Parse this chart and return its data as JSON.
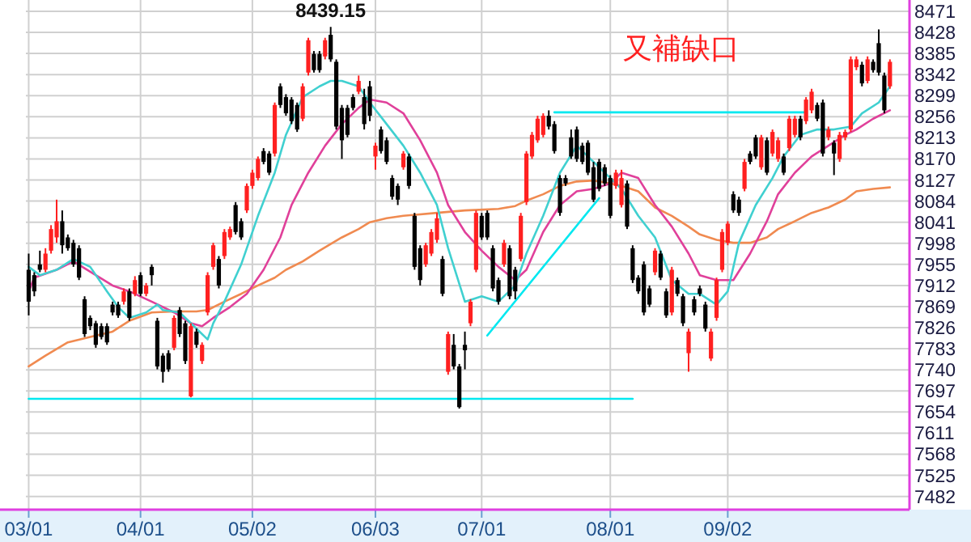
{
  "chart_data": {
    "type": "candlestick",
    "grid": true,
    "categories": [
      "03/01",
      null,
      null,
      null,
      null,
      null,
      null,
      null,
      null,
      null,
      null,
      null,
      null,
      null,
      null,
      null,
      null,
      null,
      null,
      null,
      "04/01",
      null,
      null,
      null,
      null,
      null,
      null,
      null,
      null,
      null,
      null,
      null,
      null,
      null,
      null,
      null,
      null,
      null,
      null,
      null,
      "05/02",
      null,
      null,
      null,
      null,
      null,
      null,
      null,
      null,
      null,
      null,
      null,
      null,
      null,
      null,
      null,
      null,
      null,
      null,
      null,
      null,
      null,
      "06/03",
      null,
      null,
      null,
      null,
      null,
      null,
      null,
      null,
      null,
      null,
      null,
      null,
      null,
      null,
      null,
      null,
      null,
      null,
      "07/01",
      null,
      null,
      null,
      null,
      null,
      null,
      null,
      null,
      null,
      null,
      null,
      null,
      null,
      null,
      null,
      null,
      null,
      null,
      null,
      null,
      null,
      null,
      "08/01",
      null,
      null,
      null,
      null,
      null,
      null,
      null,
      null,
      null,
      null,
      null,
      null,
      null,
      null,
      null,
      null,
      null,
      null,
      null,
      null,
      "09/02",
      null,
      null,
      null,
      null,
      null,
      null,
      null,
      null,
      null,
      null,
      null,
      null,
      null,
      null,
      null,
      null,
      null,
      null,
      null,
      null,
      null,
      null,
      null,
      null,
      null,
      null,
      null,
      null,
      null
    ],
    "ylim": [
      7455,
      8494
    ],
    "yticks": [
      7482,
      7525,
      7568,
      7611,
      7654,
      7697,
      7740,
      7783,
      7826,
      7869,
      7912,
      7955,
      7998,
      8041,
      8084,
      8127,
      8170,
      8213,
      8256,
      8299,
      8342,
      8385,
      8428,
      8471
    ],
    "annotations": [
      {
        "text": "8439.15",
        "y": 8439.15
      },
      "又補缺口"
    ],
    "ohlc": [
      [
        7944,
        7977,
        7851,
        7879
      ],
      [
        7933,
        7939,
        7890,
        7900
      ],
      [
        7955,
        7983,
        7939,
        7944
      ],
      [
        7944,
        7988,
        7939,
        7977
      ],
      [
        7983,
        8035,
        7977,
        8027
      ],
      [
        8010,
        8087,
        7999,
        8043
      ],
      [
        8043,
        8065,
        7977,
        7994
      ],
      [
        8010,
        8016,
        7983,
        7988
      ],
      [
        7999,
        8005,
        7950,
        7955
      ],
      [
        7988,
        7994,
        7923,
        7928
      ],
      [
        7884,
        7890,
        7807,
        7813
      ],
      [
        7846,
        7851,
        7821,
        7829
      ],
      [
        7835,
        7840,
        7785,
        7791
      ],
      [
        7829,
        7835,
        7802,
        7807
      ],
      [
        7829,
        7835,
        7791,
        7796
      ],
      [
        7873,
        7879,
        7851,
        7857
      ],
      [
        7873,
        7879,
        7846,
        7851
      ],
      [
        7879,
        7906,
        7873,
        7900
      ],
      [
        7900,
        7906,
        7840,
        7846
      ],
      [
        7895,
        7931,
        7890,
        7923
      ],
      [
        7933,
        7939,
        7890,
        7895
      ],
      [
        7895,
        7917,
        7890,
        7912
      ],
      [
        7950,
        7955,
        7912,
        7933
      ],
      [
        7840,
        7846,
        7741,
        7747
      ],
      [
        7769,
        7774,
        7714,
        7736
      ],
      [
        7774,
        7780,
        7736,
        7741
      ],
      [
        7785,
        7851,
        7780,
        7846
      ],
      [
        7862,
        7868,
        7807,
        7813
      ],
      [
        7835,
        7840,
        7752,
        7758
      ],
      [
        7686,
        7835,
        7684,
        7829
      ],
      [
        7818,
        7824,
        7785,
        7791
      ],
      [
        7758,
        7796,
        7752,
        7791
      ],
      [
        7857,
        7939,
        7851,
        7933
      ],
      [
        7950,
        7999,
        7944,
        7994
      ],
      [
        7966,
        7972,
        7906,
        7912
      ],
      [
        7972,
        8027,
        7966,
        8021
      ],
      [
        8010,
        8032,
        8005,
        8027
      ],
      [
        8076,
        8082,
        8016,
        8021
      ],
      [
        8043,
        8049,
        8005,
        8010
      ],
      [
        8065,
        8120,
        8060,
        8115
      ],
      [
        8115,
        8148,
        8109,
        8142
      ],
      [
        8131,
        8175,
        8126,
        8170
      ],
      [
        8186,
        8192,
        8159,
        8164
      ],
      [
        8181,
        8186,
        8137,
        8142
      ],
      [
        8181,
        8285,
        8175,
        8280
      ],
      [
        8318,
        8324,
        8274,
        8280
      ],
      [
        8296,
        8302,
        8258,
        8263
      ],
      [
        8291,
        8296,
        8241,
        8247
      ],
      [
        8280,
        8285,
        8225,
        8230
      ],
      [
        8252,
        8324,
        8247,
        8318
      ],
      [
        8346,
        8417,
        8340,
        8412
      ],
      [
        8384,
        8390,
        8346,
        8351
      ],
      [
        8384,
        8390,
        8346,
        8351
      ],
      [
        8379,
        8417,
        8373,
        8412
      ],
      [
        8423,
        8439.15,
        8368,
        8373
      ],
      [
        8368,
        8373,
        8230,
        8236
      ],
      [
        8274,
        8280,
        8170,
        8208
      ],
      [
        8274,
        8280,
        8214,
        8219
      ],
      [
        8296,
        8302,
        8269,
        8274
      ],
      [
        8307,
        8340,
        8302,
        8329
      ],
      [
        8296,
        8313,
        8230,
        8241
      ],
      [
        8318,
        8329,
        8247,
        8258
      ],
      [
        8175,
        8203,
        8148,
        8197
      ],
      [
        8230,
        8236,
        8181,
        8186
      ],
      [
        8208,
        8214,
        8159,
        8164
      ],
      [
        8131,
        8137,
        8087,
        8093
      ],
      [
        8115,
        8120,
        8076,
        8087
      ],
      [
        8153,
        8186,
        8148,
        8181
      ],
      [
        8175,
        8181,
        8109,
        8115
      ],
      [
        8054,
        8060,
        7944,
        7950
      ],
      [
        7988,
        7994,
        7912,
        7923
      ],
      [
        7955,
        7999,
        7950,
        7994
      ],
      [
        7977,
        8027,
        7972,
        8021
      ],
      [
        8005,
        8060,
        7999,
        8049
      ],
      [
        7966,
        7972,
        7890,
        7895
      ],
      [
        7736,
        7818,
        7730,
        7813
      ],
      [
        7791,
        7813,
        7741,
        7747
      ],
      [
        7747,
        7752,
        7661,
        7664
      ],
      [
        7791,
        7818,
        7741,
        7780
      ],
      [
        7835,
        7884,
        7829,
        7879
      ],
      [
        7944,
        8065,
        7939,
        8060
      ],
      [
        8054,
        8060,
        8005,
        8010
      ],
      [
        8060,
        8065,
        8005,
        8010
      ],
      [
        7988,
        7994,
        7900,
        7906
      ],
      [
        7923,
        7928,
        7873,
        7879
      ],
      [
        7955,
        8005,
        7950,
        7999
      ],
      [
        7988,
        7994,
        7884,
        7890
      ],
      [
        7944,
        7950,
        7884,
        7900
      ],
      [
        7966,
        8060,
        7961,
        8054
      ],
      [
        8082,
        8186,
        8076,
        8181
      ],
      [
        8175,
        8225,
        8170,
        8219
      ],
      [
        8208,
        8258,
        8203,
        8252
      ],
      [
        8219,
        8263,
        8214,
        8258
      ],
      [
        8258,
        8269,
        8230,
        8236
      ],
      [
        8241,
        8247,
        8181,
        8186
      ],
      [
        8131,
        8137,
        8054,
        8060
      ],
      [
        8131,
        8137,
        8115,
        8120
      ],
      [
        8214,
        8230,
        8170,
        8175
      ],
      [
        8230,
        8236,
        8164,
        8170
      ],
      [
        8197,
        8203,
        8159,
        8164
      ],
      [
        8203,
        8208,
        8137,
        8142
      ],
      [
        8153,
        8164,
        8082,
        8087
      ],
      [
        8164,
        8170,
        8104,
        8109
      ],
      [
        8153,
        8159,
        8115,
        8120
      ],
      [
        8131,
        8137,
        8049,
        8054
      ],
      [
        8115,
        8148,
        8109,
        8142
      ],
      [
        8076,
        8148,
        8071,
        8131
      ],
      [
        8120,
        8126,
        8027,
        8032
      ],
      [
        7988,
        7994,
        7917,
        7923
      ],
      [
        7928,
        7933,
        7895,
        7900
      ],
      [
        7955,
        7961,
        7851,
        7857
      ],
      [
        7906,
        7912,
        7868,
        7873
      ],
      [
        7939,
        7988,
        7933,
        7983
      ],
      [
        7977,
        7983,
        7923,
        7928
      ],
      [
        7900,
        7906,
        7846,
        7851
      ],
      [
        7857,
        7950,
        7851,
        7944
      ],
      [
        7923,
        7928,
        7890,
        7895
      ],
      [
        7890,
        7895,
        7829,
        7835
      ],
      [
        7774,
        7824,
        7736,
        7818
      ],
      [
        7884,
        7890,
        7851,
        7857
      ],
      [
        7906,
        7912,
        7890,
        7895
      ],
      [
        7873,
        7879,
        7818,
        7824
      ],
      [
        7763,
        7824,
        7758,
        7818
      ],
      [
        7846,
        7928,
        7840,
        7923
      ],
      [
        7944,
        8027,
        7939,
        8021
      ],
      [
        7999,
        8043,
        7994,
        8038
      ],
      [
        8098,
        8104,
        8060,
        8065
      ],
      [
        8087,
        8093,
        8054,
        8060
      ],
      [
        8109,
        8170,
        8104,
        8164
      ],
      [
        8181,
        8186,
        8159,
        8164
      ],
      [
        8214,
        8219,
        8170,
        8175
      ],
      [
        8153,
        8219,
        8148,
        8214
      ],
      [
        8208,
        8214,
        8137,
        8142
      ],
      [
        8181,
        8230,
        8175,
        8225
      ],
      [
        8170,
        8214,
        8164,
        8208
      ],
      [
        8175,
        8181,
        8137,
        8142
      ],
      [
        8192,
        8258,
        8186,
        8252
      ],
      [
        8219,
        8258,
        8214,
        8252
      ],
      [
        8252,
        8258,
        8208,
        8214
      ],
      [
        8247,
        8296,
        8241,
        8291
      ],
      [
        8269,
        8313,
        8263,
        8307
      ],
      [
        8280,
        8285,
        8247,
        8252
      ],
      [
        8285,
        8291,
        8175,
        8181
      ],
      [
        8214,
        8236,
        8208,
        8230
      ],
      [
        8203,
        8208,
        8137,
        8181
      ],
      [
        8170,
        8225,
        8164,
        8219
      ],
      [
        8214,
        8230,
        8208,
        8225
      ],
      [
        8230,
        8379,
        8225,
        8373
      ],
      [
        8357,
        8379,
        8351,
        8373
      ],
      [
        8362,
        8368,
        8318,
        8324
      ],
      [
        8329,
        8379,
        8324,
        8373
      ],
      [
        8368,
        8373,
        8346,
        8351
      ],
      [
        8406,
        8434,
        8340,
        8346
      ],
      [
        8340,
        8346,
        8263,
        8269
      ],
      [
        8318,
        8373,
        8313,
        8368
      ]
    ],
    "colors": [
      "#000000",
      "#000000",
      "#000000",
      "#ff2020",
      "#ff2020",
      "#ff2020",
      "#000000",
      "#000000",
      "#000000",
      "#000000",
      "#000000",
      "#000000",
      "#000000",
      "#000000",
      "#000000",
      "#000000",
      "#000000",
      "#ff2020",
      "#000000",
      "#ff2020",
      "#000000",
      "#ff2020",
      "#000000",
      "#000000",
      "#000000",
      "#000000",
      "#ff2020",
      "#000000",
      "#000000",
      "#ff2020",
      "#000000",
      "#ff2020",
      "#ff2020",
      "#ff2020",
      "#000000",
      "#ff2020",
      "#ff2020",
      "#000000",
      "#000000",
      "#ff2020",
      "#ff2020",
      "#ff2020",
      "#000000",
      "#000000",
      "#ff2020",
      "#000000",
      "#000000",
      "#000000",
      "#000000",
      "#ff2020",
      "#ff2020",
      "#000000",
      "#000000",
      "#ff2020",
      "#000000",
      "#000000",
      "#000000",
      "#000000",
      "#000000",
      "#ff2020",
      "#000000",
      "#000000",
      "#ff2020",
      "#000000",
      "#000000",
      "#000000",
      "#000000",
      "#ff2020",
      "#000000",
      "#000000",
      "#000000",
      "#ff2020",
      "#ff2020",
      "#ff2020",
      "#000000",
      "#ff2020",
      "#000000",
      "#000000",
      "#000000",
      "#ff2020",
      "#ff2020",
      "#000000",
      "#000000",
      "#000000",
      "#000000",
      "#ff2020",
      "#000000",
      "#000000",
      "#ff2020",
      "#ff2020",
      "#ff2020",
      "#ff2020",
      "#ff2020",
      "#000000",
      "#000000",
      "#000000",
      "#000000",
      "#000000",
      "#000000",
      "#000000",
      "#000000",
      "#000000",
      "#000000",
      "#000000",
      "#000000",
      "#ff2020",
      "#ff2020",
      "#000000",
      "#000000",
      "#000000",
      "#000000",
      "#000000",
      "#ff2020",
      "#000000",
      "#000000",
      "#ff2020",
      "#000000",
      "#000000",
      "#ff2020",
      "#000000",
      "#000000",
      "#000000",
      "#ff2020",
      "#ff2020",
      "#ff2020",
      "#ff2020",
      "#000000",
      "#000000",
      "#ff2020",
      "#000000",
      "#000000",
      "#ff2020",
      "#000000",
      "#ff2020",
      "#ff2020",
      "#000000",
      "#ff2020",
      "#ff2020",
      "#000000",
      "#ff2020",
      "#ff2020",
      "#000000",
      "#000000",
      "#ff2020",
      "#000000",
      "#ff2020",
      "#ff2020",
      "#ff2020",
      "#ff2020",
      "#000000",
      "#ff2020",
      "#000000",
      "#000000",
      "#000000",
      "#ff2020"
    ],
    "series": [
      {
        "type": "line",
        "color": "#f08a50",
        "values": [
          7747,
          null,
          null,
          7769,
          null,
          null,
          null,
          7796,
          null,
          null,
          null,
          7807,
          null,
          null,
          null,
          7818,
          null,
          null,
          7840,
          null,
          null,
          null,
          7857,
          null,
          null,
          null,
          7859,
          null,
          null,
          null,
          7859,
          null,
          7862,
          null,
          null,
          7879,
          null,
          null,
          7895,
          null,
          null,
          7912,
          null,
          null,
          7928,
          null,
          7944,
          null,
          null,
          7961,
          null,
          null,
          7983,
          null,
          null,
          null,
          8010,
          null,
          null,
          8027,
          null,
          8041,
          null,
          null,
          8049,
          null,
          null,
          8054,
          null,
          null,
          null,
          null,
          null,
          8060,
          null,
          null,
          null,
          null,
          8065,
          null,
          null,
          null,
          null,
          null,
          8068,
          null,
          null,
          8074,
          null,
          8085,
          null,
          null,
          8098,
          null,
          null,
          8115,
          null,
          null,
          8124,
          null,
          null,
          8126,
          null,
          null,
          8120,
          null,
          8115,
          null,
          null,
          8104,
          null,
          null,
          8071,
          null,
          null,
          8054,
          null,
          null,
          8032,
          null,
          8016,
          null,
          null,
          8005,
          null,
          null,
          7999,
          null,
          null,
          7999,
          null,
          null,
          8010,
          null,
          8027,
          null,
          null,
          8043,
          null,
          null,
          8060,
          null,
          null,
          8071,
          null,
          null,
          8087,
          null,
          8104,
          null,
          null,
          8109,
          null,
          null,
          8112
        ]
      },
      {
        "type": "line",
        "color": "#e0409a",
        "values": [
          7900,
          7928,
          null,
          null,
          null,
          7944,
          null,
          null,
          7961,
          null,
          null,
          null,
          7933,
          null,
          null,
          7912,
          null,
          null,
          7900,
          null,
          null,
          null,
          7879,
          null,
          null,
          null,
          7857,
          null,
          null,
          7835,
          null,
          7829,
          null,
          7846,
          null,
          null,
          7868,
          null,
          null,
          7895,
          null,
          null,
          7944,
          null,
          null,
          8010,
          null,
          8076,
          null,
          null,
          8142,
          null,
          null,
          8197,
          null,
          null,
          8241,
          null,
          null,
          8274,
          null,
          8291,
          null,
          null,
          8285,
          null,
          null,
          8263,
          null,
          null,
          8208,
          null,
          null,
          8142,
          null,
          8076,
          null,
          null,
          8021,
          null,
          null,
          7983,
          null,
          null,
          7950,
          null,
          null,
          7923,
          null,
          7944,
          null,
          null,
          8021,
          null,
          null,
          8076,
          null,
          null,
          8104,
          null,
          null,
          8109,
          null,
          null,
          8120,
          null,
          8142,
          null,
          null,
          8131,
          null,
          null,
          8076,
          null,
          null,
          8032,
          null,
          null,
          7977,
          null,
          7933,
          null,
          null,
          7923,
          null,
          null,
          7923,
          null,
          null,
          7977,
          null,
          null,
          8043,
          null,
          8098,
          null,
          null,
          8142,
          null,
          null,
          8175,
          null,
          null,
          8197,
          null,
          null,
          8219,
          null,
          8230,
          null,
          null,
          8252,
          null,
          null,
          8269
        ]
      },
      {
        "type": "line",
        "color": "#40d0d0",
        "values": [
          7950,
          null,
          7933,
          null,
          null,
          7944,
          null,
          null,
          7966,
          null,
          null,
          7950,
          null,
          null,
          7900,
          null,
          7868,
          null,
          7846,
          null,
          null,
          7857,
          null,
          7873,
          7862,
          null,
          null,
          7857,
          null,
          null,
          7824,
          null,
          7802,
          7835,
          null,
          7879,
          null,
          null,
          7955,
          null,
          null,
          8054,
          null,
          null,
          8142,
          null,
          8219,
          null,
          null,
          8296,
          null,
          null,
          8318,
          null,
          8329,
          null,
          8329,
          null,
          null,
          8318,
          null,
          8285,
          null,
          null,
          8241,
          null,
          null,
          8197,
          null,
          null,
          8142,
          null,
          null,
          8076,
          null,
          7988,
          null,
          null,
          7879,
          null,
          null,
          7890,
          null,
          null,
          7879,
          null,
          null,
          7912,
          null,
          7977,
          null,
          null,
          8054,
          null,
          null,
          8142,
          null,
          null,
          8197,
          null,
          null,
          8164,
          null,
          null,
          8131,
          null,
          8109,
          null,
          null,
          8054,
          null,
          null,
          8010,
          null,
          null,
          7923,
          null,
          null,
          7895,
          null,
          7895,
          null,
          null,
          7873,
          null,
          7900,
          null,
          7999,
          null,
          null,
          8076,
          null,
          null,
          8131,
          null,
          8175,
          null,
          null,
          8219,
          null,
          null,
          8230,
          null,
          null,
          8230,
          null,
          null,
          8236,
          null,
          8263,
          null,
          null,
          8285,
          null,
          8318
        ]
      },
      {
        "type": "line",
        "color": "#00e8f0",
        "values": [
          7681,
          null,
          null,
          null,
          null,
          null,
          null,
          null,
          null,
          null,
          null,
          null,
          null,
          null,
          null,
          null,
          null,
          null,
          null,
          null,
          null,
          null,
          null,
          null,
          null,
          null,
          null,
          null,
          null,
          null,
          null,
          null,
          null,
          null,
          null,
          null,
          null,
          null,
          null,
          null,
          null,
          null,
          null,
          null,
          null,
          null,
          null,
          null,
          null,
          null,
          null,
          null,
          null,
          null,
          null,
          null,
          null,
          null,
          null,
          null,
          null,
          null,
          null,
          null,
          null,
          null,
          null,
          null,
          null,
          null,
          null,
          null,
          null,
          null,
          null,
          null,
          null,
          null,
          null,
          null,
          null,
          null,
          null,
          null,
          null,
          null,
          null,
          null,
          null,
          null,
          null,
          null,
          null,
          null,
          null,
          null,
          null,
          null,
          null,
          null,
          null,
          null,
          null,
          null,
          null,
          null,
          null,
          null,
          7681,
          null,
          null,
          null,
          null,
          null,
          null,
          null,
          null,
          null,
          null,
          null,
          null,
          null,
          null,
          null,
          null,
          null,
          null,
          null,
          null,
          null,
          null,
          null,
          null,
          null,
          null,
          null,
          null,
          null,
          null,
          null,
          null,
          null,
          null,
          null,
          null,
          null,
          null,
          null,
          null,
          null,
          null,
          null,
          null,
          null,
          null
        ]
      },
      {
        "type": "line",
        "color": "#00e8f0",
        "values": [
          null,
          null,
          null,
          null,
          null,
          null,
          null,
          null,
          null,
          null,
          null,
          null,
          null,
          null,
          null,
          null,
          null,
          null,
          null,
          null,
          null,
          null,
          null,
          null,
          null,
          null,
          null,
          null,
          null,
          null,
          null,
          null,
          null,
          null,
          null,
          null,
          null,
          null,
          null,
          null,
          null,
          null,
          null,
          null,
          null,
          null,
          null,
          null,
          null,
          null,
          null,
          null,
          null,
          null,
          null,
          null,
          null,
          null,
          null,
          null,
          null,
          null,
          null,
          null,
          null,
          null,
          null,
          null,
          null,
          null,
          null,
          null,
          null,
          null,
          null,
          null,
          null,
          null,
          null,
          null,
          null,
          null,
          null,
          null,
          null,
          null,
          null,
          null,
          null,
          null,
          null,
          null,
          null,
          null,
          8265,
          null,
          null,
          null,
          null,
          null,
          null,
          null,
          null,
          null,
          null,
          null,
          null,
          null,
          null,
          null,
          null,
          null,
          null,
          null,
          null,
          null,
          null,
          null,
          null,
          null,
          null,
          null,
          null,
          null,
          null,
          null,
          null,
          null,
          null,
          null,
          null,
          null,
          null,
          null,
          null,
          null,
          null,
          null,
          null,
          8265,
          null,
          null,
          null,
          null,
          null,
          null,
          null,
          null,
          null,
          null,
          null,
          null,
          null,
          null,
          null
        ]
      },
      {
        "type": "line",
        "color": "#00e8f0",
        "values": [
          null,
          null,
          null,
          null,
          null,
          null,
          null,
          null,
          null,
          null,
          null,
          null,
          null,
          null,
          null,
          null,
          null,
          null,
          null,
          null,
          null,
          null,
          null,
          null,
          null,
          null,
          null,
          null,
          null,
          null,
          null,
          null,
          null,
          null,
          null,
          null,
          null,
          null,
          null,
          null,
          null,
          null,
          null,
          null,
          null,
          null,
          null,
          null,
          null,
          null,
          null,
          null,
          null,
          null,
          null,
          null,
          null,
          null,
          null,
          null,
          null,
          null,
          null,
          null,
          null,
          null,
          null,
          null,
          null,
          null,
          null,
          null,
          null,
          null,
          null,
          null,
          null,
          null,
          null,
          null,
          null,
          null,
          7810,
          null,
          null,
          null,
          null,
          null,
          null,
          null,
          null,
          null,
          null,
          null,
          null,
          null,
          null,
          null,
          null,
          null,
          null,
          null,
          8090,
          null,
          null,
          null,
          null,
          null,
          null,
          null,
          null,
          null,
          null,
          null,
          null,
          null,
          null,
          null,
          null,
          null,
          null,
          null,
          null,
          null,
          null,
          null,
          null,
          null,
          null,
          null,
          null,
          null,
          null,
          null,
          null,
          null,
          null,
          null,
          null,
          null,
          null,
          null,
          null,
          null,
          null,
          null,
          null,
          null,
          null,
          null,
          null,
          null,
          null,
          null,
          null
        ]
      }
    ]
  }
}
